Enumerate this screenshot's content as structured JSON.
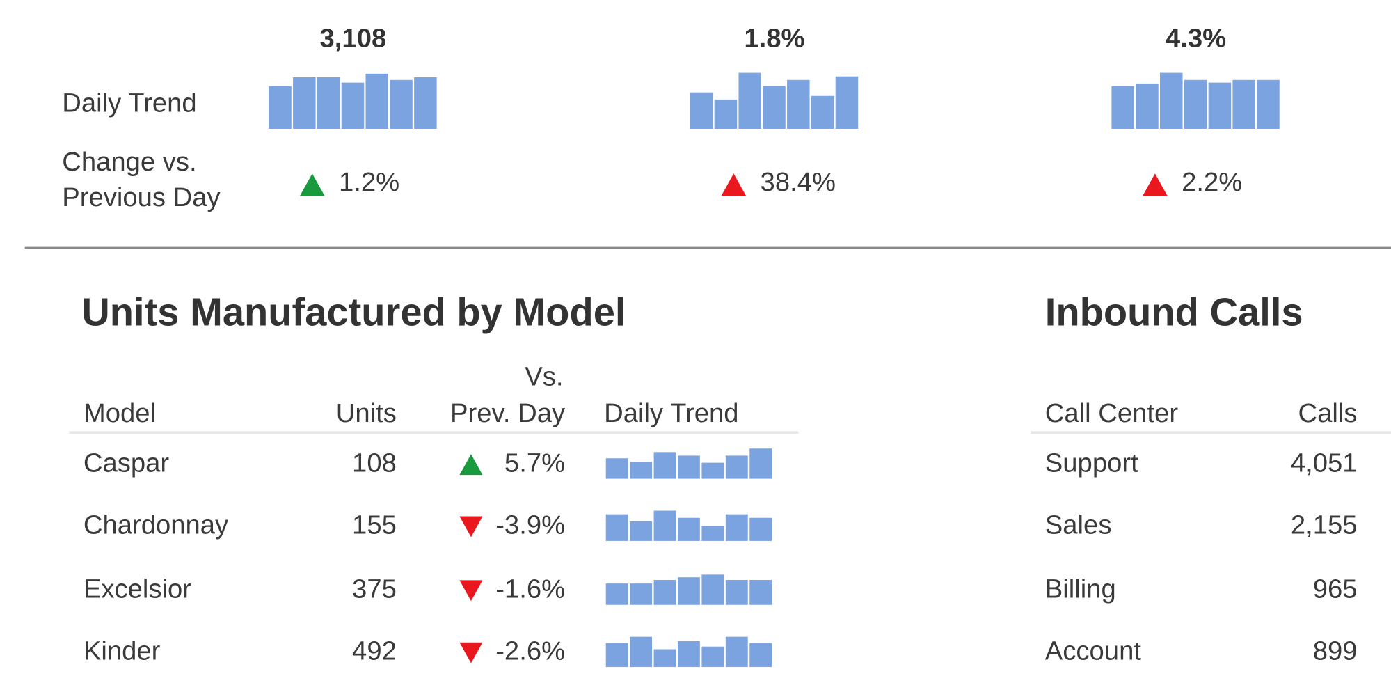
{
  "labels": {
    "daily_trend": "Daily Trend",
    "change": [
      "Change vs.",
      "Previous Day"
    ]
  },
  "kpis": [
    {
      "value": "3,108",
      "trend": [
        48,
        58,
        58,
        52,
        62,
        55,
        58
      ],
      "change": "1.2%",
      "direction": "up",
      "color": "#1a9a3f"
    },
    {
      "value": "1.8%",
      "trend": [
        41,
        33,
        63,
        48,
        55,
        37,
        59
      ],
      "change": "38.4%",
      "direction": "up",
      "color": "#e8181e"
    },
    {
      "value": "4.3%",
      "trend": [
        48,
        51,
        63,
        55,
        52,
        55,
        55
      ],
      "change": "2.2%",
      "direction": "up",
      "color": "#e8181e"
    }
  ],
  "models": {
    "title": "Units Manufactured by Model",
    "headers": {
      "model": "Model",
      "units": "Units",
      "change": [
        "Vs.",
        "Prev. Day"
      ],
      "trend": "Daily Trend"
    },
    "rows": [
      {
        "model": "Caspar",
        "units": "108",
        "change": "5.7%",
        "direction": "up",
        "color": "#1a9a3f",
        "trend": [
          23,
          19,
          30,
          26,
          18,
          26,
          34
        ]
      },
      {
        "model": "Chardonnay",
        "units": "155",
        "change": "-3.9%",
        "direction": "down",
        "color": "#e8181e",
        "trend": [
          30,
          22,
          34,
          26,
          17,
          30,
          26
        ]
      },
      {
        "model": "Excelsior",
        "units": "375",
        "change": "-1.6%",
        "direction": "down",
        "color": "#e8181e",
        "trend": [
          24,
          24,
          28,
          31,
          34,
          28,
          28
        ]
      },
      {
        "model": "Kinder",
        "units": "492",
        "change": "-2.6%",
        "direction": "down",
        "color": "#e8181e",
        "trend": [
          27,
          34,
          20,
          29,
          23,
          34,
          27
        ]
      }
    ]
  },
  "calls": {
    "title": "Inbound Calls",
    "headers": {
      "center": "Call Center",
      "calls": "Calls"
    },
    "rows": [
      {
        "center": "Support",
        "calls": "4,051"
      },
      {
        "center": "Sales",
        "calls": "2,155"
      },
      {
        "center": "Billing",
        "calls": "965"
      },
      {
        "center": "Account",
        "calls": "899"
      }
    ]
  },
  "bar_color": "#7ba3e0"
}
